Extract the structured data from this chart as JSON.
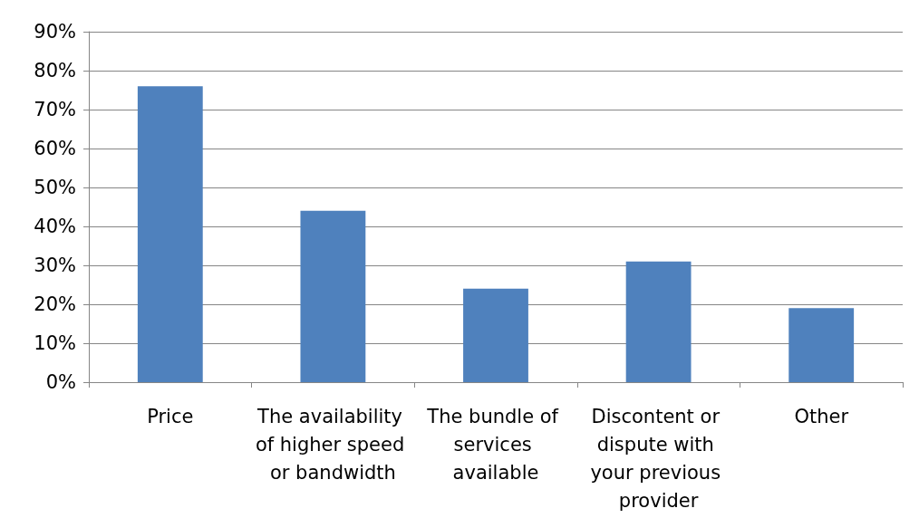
{
  "chart_data": {
    "type": "bar",
    "categories": [
      "Price",
      "The availability of higher speed or bandwidth",
      "The bundle of services available",
      "Discontent or dispute with your previous provider",
      "Other"
    ],
    "values": [
      76,
      44,
      24,
      31,
      19
    ],
    "color": "#4f81bd",
    "ylim": [
      0,
      90
    ],
    "yticks": [
      {
        "value": 0,
        "label": "0%"
      },
      {
        "value": 10,
        "label": "10%"
      },
      {
        "value": 20,
        "label": "20%"
      },
      {
        "value": 30,
        "label": "30%"
      },
      {
        "value": 40,
        "label": "40%"
      },
      {
        "value": 50,
        "label": "50%"
      },
      {
        "value": 60,
        "label": "60%"
      },
      {
        "value": 70,
        "label": "70%"
      },
      {
        "value": 80,
        "label": "80%"
      },
      {
        "value": 90,
        "label": "90%"
      }
    ],
    "grid": "y"
  }
}
